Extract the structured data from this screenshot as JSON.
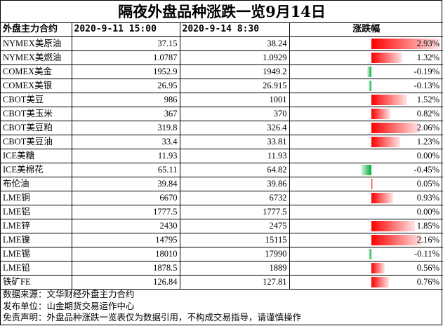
{
  "title": "隔夜外盘品种涨跌一览9月14日",
  "headers": {
    "name": "外盘主力合约",
    "date1": "2020-9-11 15:00",
    "date2": "2020-9-14 8:30",
    "change": "涨跌幅"
  },
  "colors": {
    "up": "#ff0000",
    "down": "#00aa33"
  },
  "rows": [
    {
      "name": "NYMEX美原油",
      "prev": "37.15",
      "curr": "38.24",
      "change": "2.93%",
      "change_value": 2.93
    },
    {
      "name": "NYMEX美燃油",
      "prev": "1.0787",
      "curr": "1.0929",
      "change": "1.32%",
      "change_value": 1.32
    },
    {
      "name": "COMEX美金",
      "prev": "1952.9",
      "curr": "1949.2",
      "change": "-0.19%",
      "change_value": -0.19
    },
    {
      "name": "COMEX美银",
      "prev": "26.95",
      "curr": "26.915",
      "change": "-0.13%",
      "change_value": -0.13
    },
    {
      "name": "CBOT美豆",
      "prev": "986",
      "curr": "1001",
      "change": "1.52%",
      "change_value": 1.52
    },
    {
      "name": "CBOT美玉米",
      "prev": "367",
      "curr": "370",
      "change": "0.82%",
      "change_value": 0.82
    },
    {
      "name": "CBOT美豆粕",
      "prev": "319.8",
      "curr": "326.4",
      "change": "2.06%",
      "change_value": 2.06
    },
    {
      "name": "CBOT美豆油",
      "prev": "33.4",
      "curr": "33.81",
      "change": "1.23%",
      "change_value": 1.23
    },
    {
      "name": "ICE美糖",
      "prev": "11.93",
      "curr": "11.93",
      "change": "0.00%",
      "change_value": 0.0
    },
    {
      "name": "ICE美棉花",
      "prev": "65.11",
      "curr": "64.82",
      "change": "-0.45%",
      "change_value": -0.45
    },
    {
      "name": "布伦油",
      "prev": "39.84",
      "curr": "39.86",
      "change": "0.05%",
      "change_value": 0.05
    },
    {
      "name": "LME铜",
      "prev": "6670",
      "curr": "6732",
      "change": "0.93%",
      "change_value": 0.93
    },
    {
      "name": "LME铝",
      "prev": "1777.5",
      "curr": "1777.5",
      "change": "0.00%",
      "change_value": 0.0
    },
    {
      "name": "LME锌",
      "prev": "2430",
      "curr": "2475",
      "change": "1.85%",
      "change_value": 1.85
    },
    {
      "name": "LME镍",
      "prev": "14795",
      "curr": "15115",
      "change": "2.16%",
      "change_value": 2.16
    },
    {
      "name": "LME锡",
      "prev": "18010",
      "curr": "17990",
      "change": "-0.11%",
      "change_value": -0.11
    },
    {
      "name": "LME铅",
      "prev": "1878.5",
      "curr": "1889",
      "change": "0.56%",
      "change_value": 0.56
    },
    {
      "name": "铁矿FE",
      "prev": "126.84",
      "curr": "127.81",
      "change": "0.76%",
      "change_value": 0.76
    }
  ],
  "footer": {
    "source": "数据来源：文华财经外盘主力合约",
    "publisher": "发布单位：山金期货交易运作中心",
    "disclaimer": "免责声明：外盘品种涨跌一览表仅为数据引用，不构成交易指导，请谨慎操作"
  }
}
